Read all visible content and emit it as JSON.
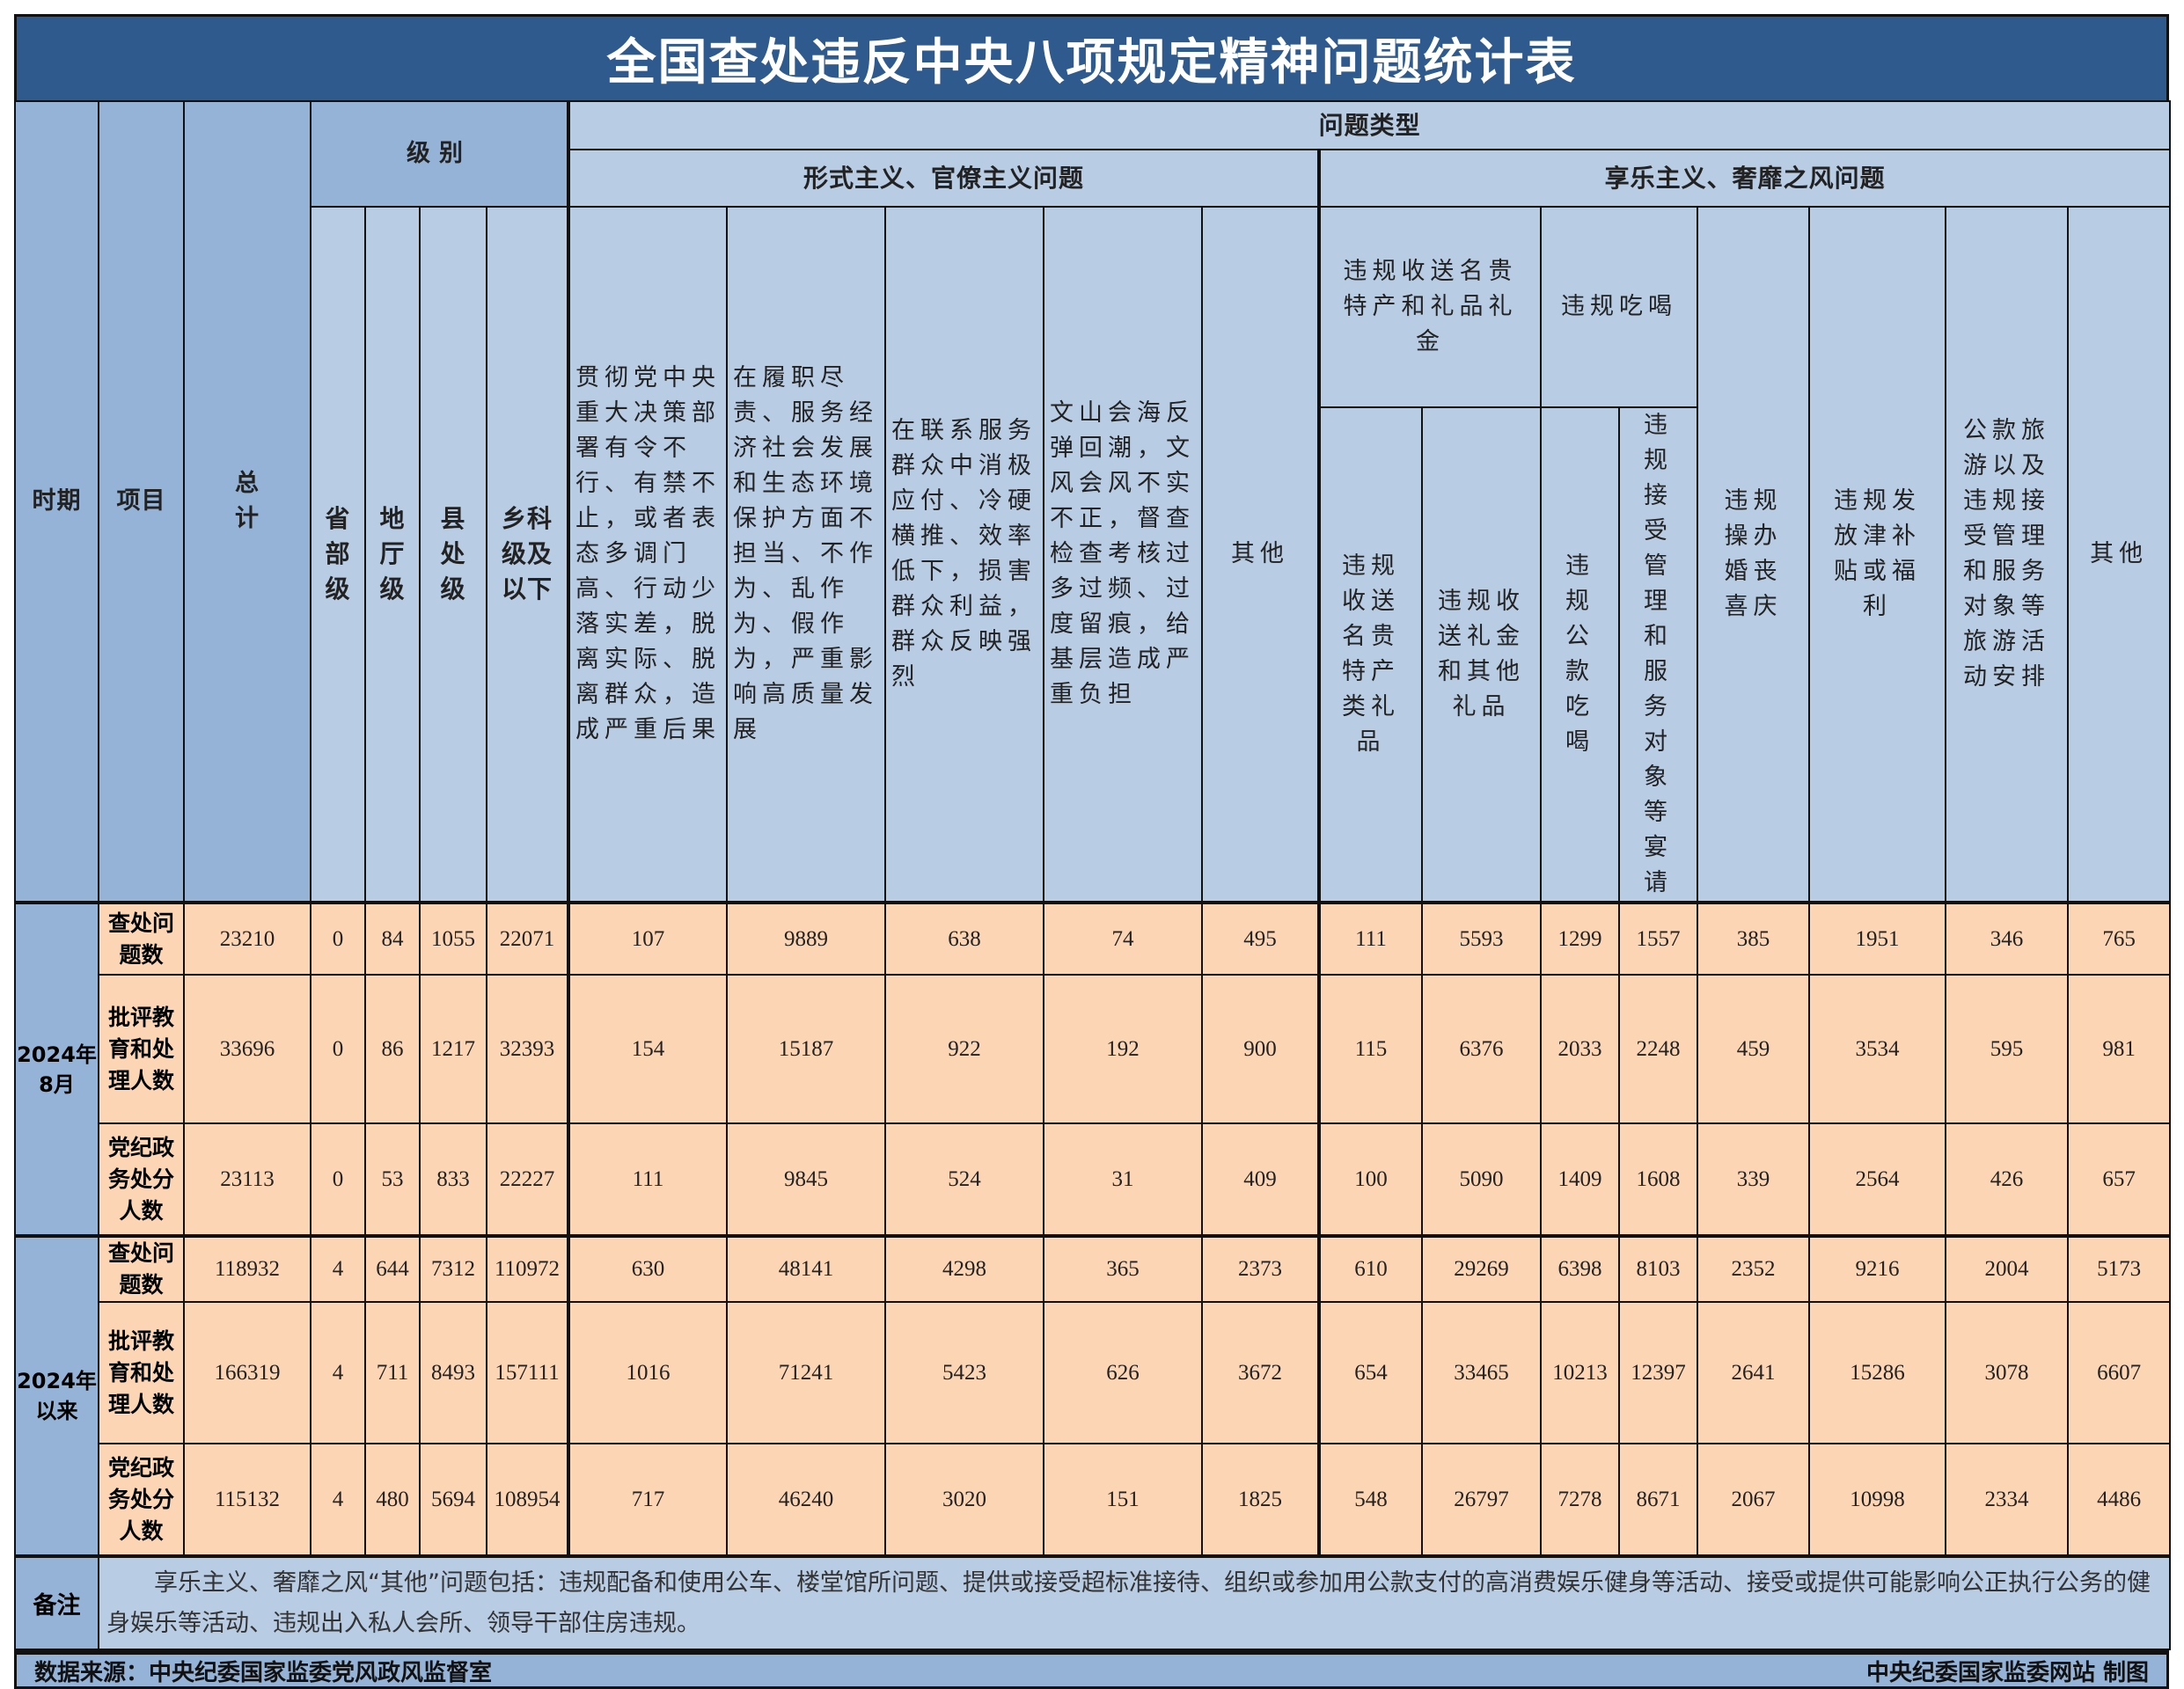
{
  "title": "全国查处违反中央八项规定精神问题统计表",
  "header": {
    "period": "时期",
    "item": "项目",
    "total": "总计",
    "level": "级别",
    "levels": [
      "省部级",
      "地厅级",
      "县处级",
      "乡科级及以下"
    ],
    "problem_type": "问题类型",
    "formalism_group": "形式主义、官僚主义问题",
    "formalism_cols": [
      "贯彻党中央重大决策部署有令不行、有禁不止，或者表态多调门高、行动少落实差，脱离实际、脱离群众，造成严重后果",
      "在履职尽责、服务经济社会发展和生态环境保护方面不担当、不作为、乱作为、假作为，严重影响高质量发展",
      "在联系服务群众中消极应付、冷硬横推、效率低下，损害群众利益，群众反映强烈",
      "文山会海反弹回潮，文风会风不实不正，督查检查考核过多过频、过度留痕，给基层造成严重负担",
      "其他"
    ],
    "hedonism_group": "享乐主义、奢靡之风问题",
    "gifts": "违规收送名贵特产和礼品礼金",
    "gifts_sub": [
      "违规收送名贵特产类礼品",
      "违规收送礼金和其他礼品"
    ],
    "dining": "违规吃喝",
    "dining_sub": [
      "违规公款吃喝",
      "违规接受管理和服务对象等宴请"
    ],
    "weddings": "违规操办婚丧喜庆",
    "allowances": "违规发放津补贴或福利",
    "travel": "公款旅游以及违规接受管理和服务对象等旅游活动安排",
    "other": "其他"
  },
  "periods": [
    {
      "label": "2024年8月",
      "rows": [
        {
          "item": "查处问题数",
          "values": [
            23210,
            0,
            84,
            1055,
            22071,
            107,
            9889,
            638,
            74,
            495,
            111,
            5593,
            1299,
            1557,
            385,
            1951,
            346,
            765
          ]
        },
        {
          "item": "批评教育和处理人数",
          "values": [
            33696,
            0,
            86,
            1217,
            32393,
            154,
            15187,
            922,
            192,
            900,
            115,
            6376,
            2033,
            2248,
            459,
            3534,
            595,
            981
          ]
        },
        {
          "item": "党纪政务处分人数",
          "values": [
            23113,
            0,
            53,
            833,
            22227,
            111,
            9845,
            524,
            31,
            409,
            100,
            5090,
            1409,
            1608,
            339,
            2564,
            426,
            657
          ]
        }
      ]
    },
    {
      "label": "2024年以来",
      "rows": [
        {
          "item": "查处问题数",
          "values": [
            118932,
            4,
            644,
            7312,
            110972,
            630,
            48141,
            4298,
            365,
            2373,
            610,
            29269,
            6398,
            8103,
            2352,
            9216,
            2004,
            5173
          ]
        },
        {
          "item": "批评教育和处理人数",
          "values": [
            166319,
            4,
            711,
            8493,
            157111,
            1016,
            71241,
            5423,
            626,
            3672,
            654,
            33465,
            10213,
            12397,
            2641,
            15286,
            3078,
            6607
          ]
        },
        {
          "item": "党纪政务处分人数",
          "values": [
            115132,
            4,
            480,
            5694,
            108954,
            717,
            46240,
            3020,
            151,
            1825,
            548,
            26797,
            7278,
            8671,
            2067,
            10998,
            2334,
            4486
          ]
        }
      ]
    }
  ],
  "note": {
    "label": "备注",
    "text": "享乐主义、奢靡之风“其他”问题包括：违规配备和使用公车、楼堂馆所问题、提供或接受超标准接待、组织或参加用公款支付的高消费娱乐健身等活动、接受或提供可能影响公正执行公务的健身娱乐等活动、违规出入私人会所、领导干部住房违规。"
  },
  "footer": {
    "source": "数据来源：中央纪委国家监委党风政风监督室",
    "credit": "中央纪委国家监委网站 制图"
  },
  "colors": {
    "title_bg": "#2f5a8e",
    "header_bg": "#b8cce4",
    "header_dark": "#95b3d7",
    "data_bg": "#fcd5b4"
  }
}
